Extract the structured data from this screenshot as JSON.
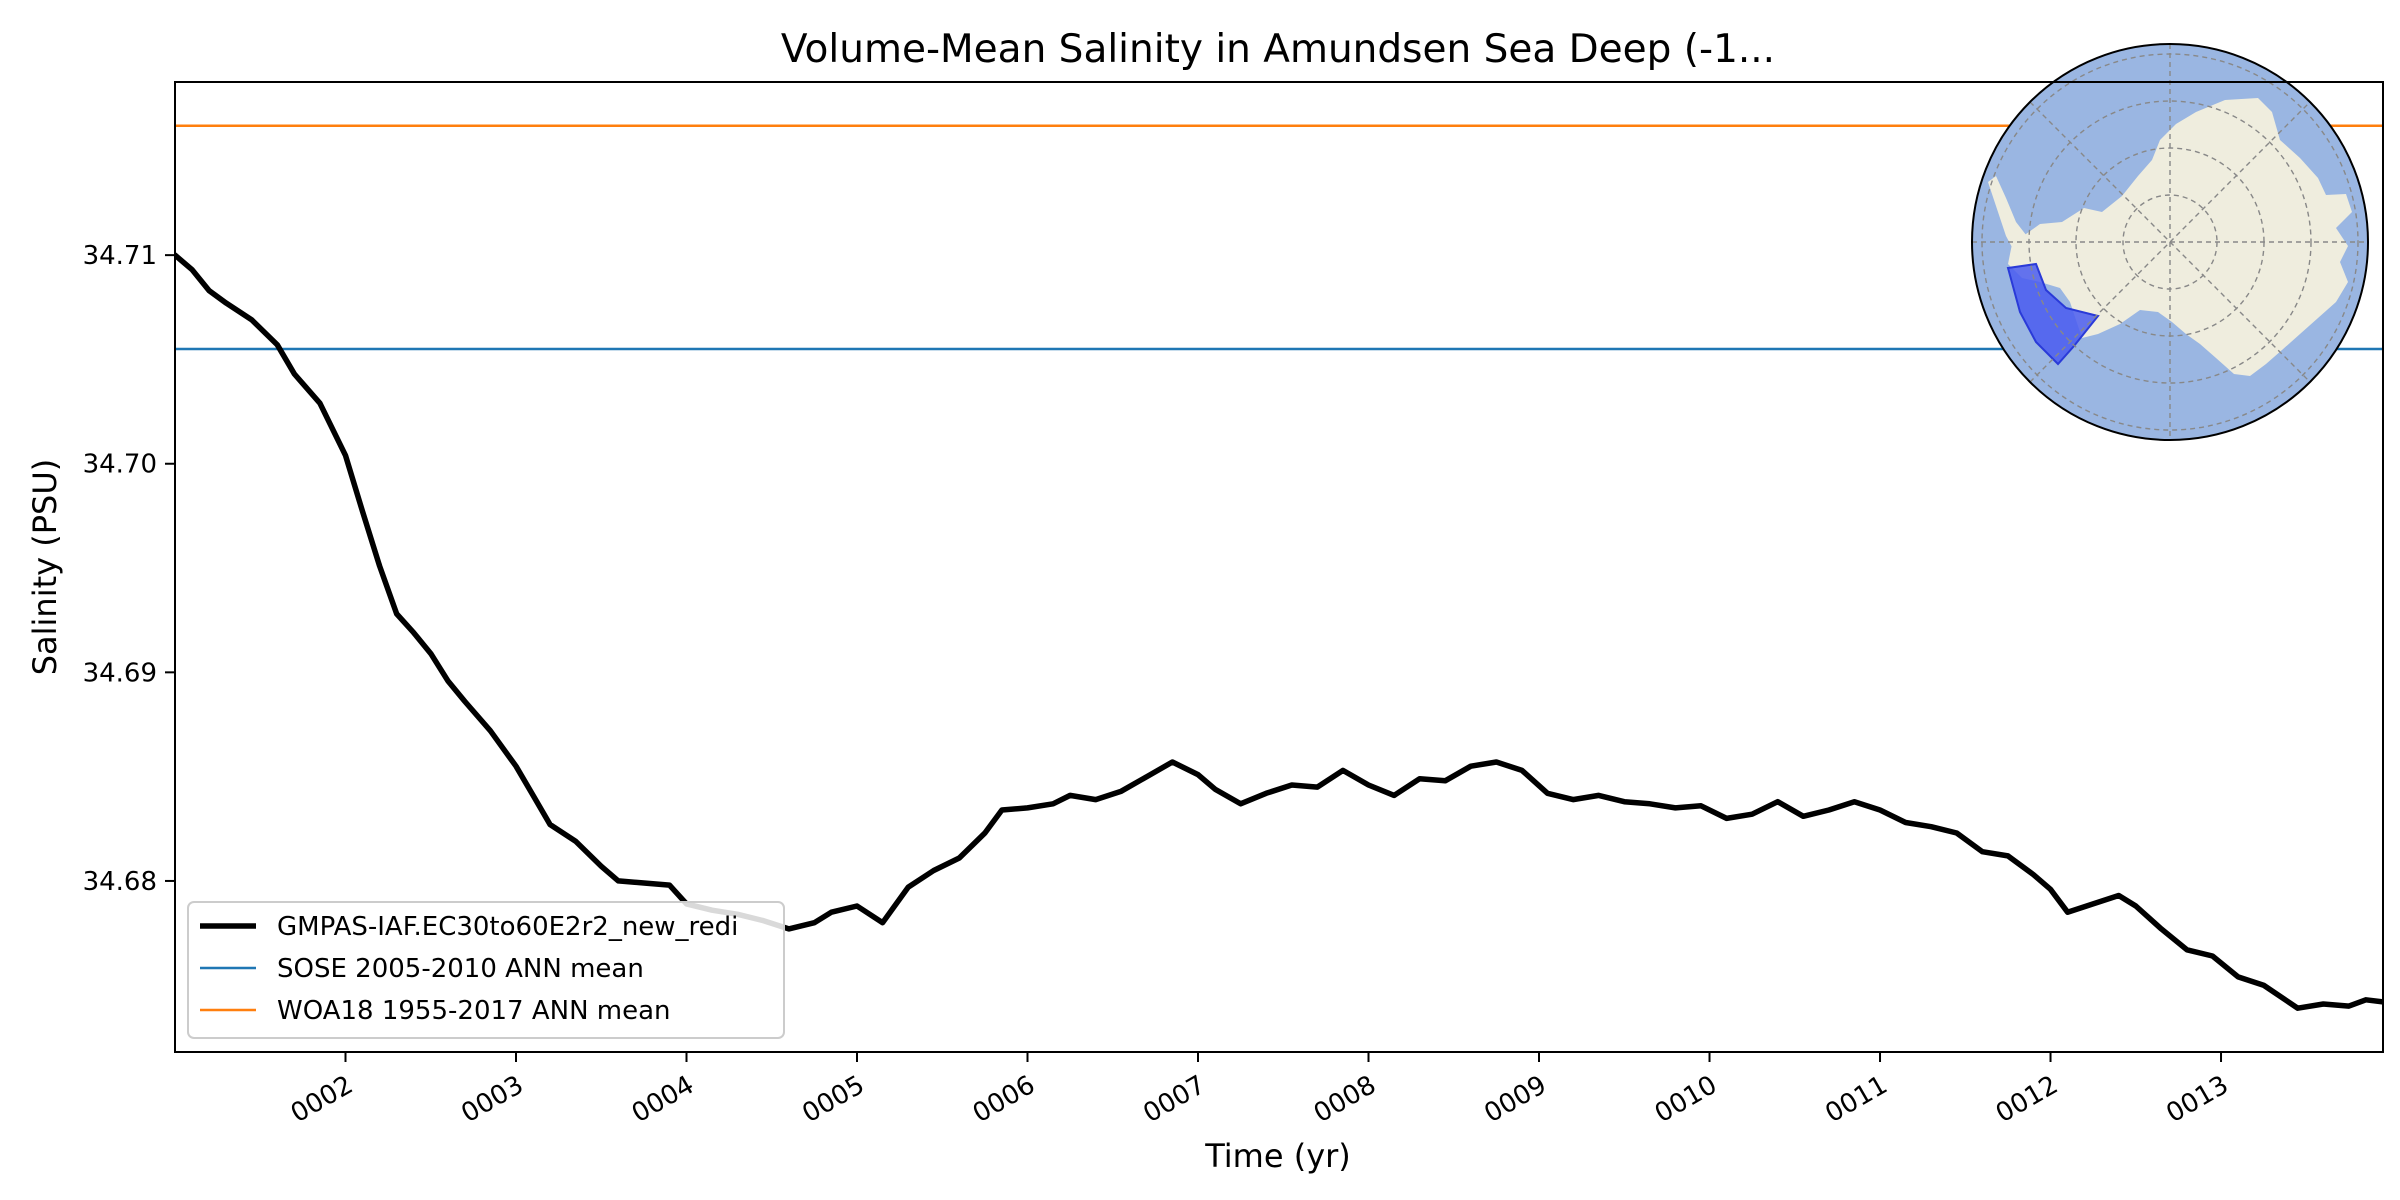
{
  "chart_data": {
    "type": "line",
    "title": "Volume-Mean Salinity in Amundsen Sea Deep (-1...",
    "xlabel": "Time (yr)",
    "ylabel": "Salinity (PSU)",
    "xlim": [
      1.0,
      13.95
    ],
    "ylim": [
      34.6718,
      34.7183
    ],
    "yticks": [
      34.68,
      34.69,
      34.7,
      34.71
    ],
    "ytick_labels": [
      "34.68",
      "34.69",
      "34.70",
      "34.71"
    ],
    "xticks": [
      2,
      3,
      4,
      5,
      6,
      7,
      8,
      9,
      10,
      11,
      12,
      13
    ],
    "xtick_labels": [
      "0002",
      "0003",
      "0004",
      "0005",
      "0006",
      "0007",
      "0008",
      "0009",
      "0010",
      "0011",
      "0012",
      "0013"
    ],
    "grid": false,
    "legend_position": "lower-left",
    "inset": "south-polar map with Amundsen Sea region highlighted",
    "series": [
      {
        "name": "GMPAS-IAF.EC30to60E2r2_new_redi",
        "color": "#000000",
        "style": "thick-line",
        "x": [
          1.0,
          1.1,
          1.2,
          1.3,
          1.45,
          1.6,
          1.7,
          1.85,
          2.0,
          2.1,
          2.2,
          2.3,
          2.4,
          2.5,
          2.6,
          2.7,
          2.85,
          3.0,
          3.1,
          3.2,
          3.35,
          3.5,
          3.6,
          3.75,
          3.9,
          4.0,
          4.15,
          4.3,
          4.45,
          4.6,
          4.75,
          4.85,
          5.0,
          5.15,
          5.3,
          5.45,
          5.6,
          5.75,
          5.85,
          6.0,
          6.15,
          6.25,
          6.4,
          6.55,
          6.7,
          6.85,
          7.0,
          7.1,
          7.25,
          7.4,
          7.55,
          7.7,
          7.85,
          8.0,
          8.15,
          8.3,
          8.45,
          8.6,
          8.75,
          8.9,
          9.05,
          9.2,
          9.35,
          9.5,
          9.65,
          9.8,
          9.95,
          10.1,
          10.25,
          10.4,
          10.55,
          10.7,
          10.85,
          11.0,
          11.15,
          11.3,
          11.45,
          11.6,
          11.75,
          11.9,
          12.0,
          12.1,
          12.25,
          12.4,
          12.5,
          12.65,
          12.8,
          12.95,
          13.1,
          13.25,
          13.45,
          13.6,
          13.75,
          13.85,
          13.95
        ],
        "values": [
          34.71,
          34.7093,
          34.7083,
          34.7077,
          34.7069,
          34.7057,
          34.7043,
          34.7029,
          34.7004,
          34.6977,
          34.6951,
          34.6928,
          34.6919,
          34.6909,
          34.6896,
          34.6886,
          34.6872,
          34.6855,
          34.6841,
          34.6827,
          34.6819,
          34.6807,
          34.68,
          34.6799,
          34.6798,
          34.6789,
          34.6786,
          34.6784,
          34.6781,
          34.6777,
          34.678,
          34.6785,
          34.6788,
          34.678,
          34.6797,
          34.6805,
          34.6811,
          34.6823,
          34.6834,
          34.6835,
          34.6837,
          34.6841,
          34.6839,
          34.6843,
          34.685,
          34.6857,
          34.6851,
          34.6844,
          34.6837,
          34.6842,
          34.6846,
          34.6845,
          34.6853,
          34.6846,
          34.6841,
          34.6849,
          34.6848,
          34.6855,
          34.6857,
          34.6853,
          34.6842,
          34.6839,
          34.6841,
          34.6838,
          34.6837,
          34.6835,
          34.6836,
          34.683,
          34.6832,
          34.6838,
          34.6831,
          34.6834,
          34.6838,
          34.6834,
          34.6828,
          34.6826,
          34.6823,
          34.6814,
          34.6812,
          34.6803,
          34.6796,
          34.6785,
          34.6789,
          34.6793,
          34.6788,
          34.6777,
          34.6767,
          34.6764,
          34.6754,
          34.675,
          34.6739,
          34.6741,
          34.674,
          34.6743,
          34.6742
        ]
      },
      {
        "name": "SOSE 2005-2010 ANN mean",
        "color": "#1f77b4",
        "style": "thin-line",
        "x": [
          1.0,
          13.95
        ],
        "values": [
          34.7055,
          34.7055
        ]
      },
      {
        "name": "WOA18 1955-2017 ANN mean",
        "color": "#ff7f0e",
        "style": "thin-line",
        "x": [
          1.0,
          13.95
        ],
        "values": [
          34.7162,
          34.7162
        ]
      }
    ]
  }
}
